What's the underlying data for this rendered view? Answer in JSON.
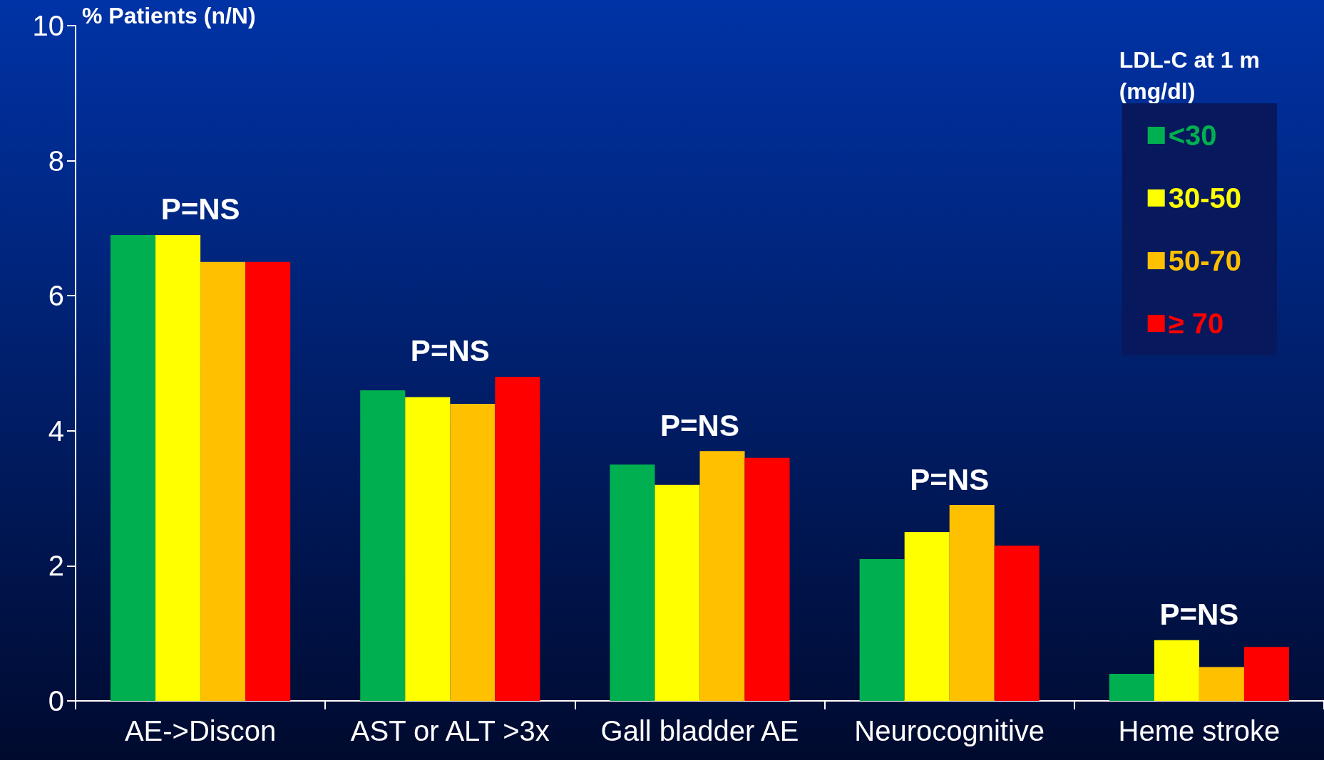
{
  "chart_data": {
    "type": "bar",
    "ylabel": "% Patients (n/N)",
    "legend_title": "LDL-C at 1 m\n(mg/dl)",
    "categories": [
      "AE->Discon",
      "AST or ALT >3x",
      "Gall bladder AE",
      "Neurocognitive",
      "Heme stroke"
    ],
    "series": [
      {
        "name": "<30",
        "color": "#00b050",
        "values": [
          6.9,
          4.6,
          3.5,
          2.1,
          0.4
        ]
      },
      {
        "name": "30-50",
        "color": "#ffff00",
        "values": [
          6.9,
          4.5,
          3.2,
          2.5,
          0.9
        ]
      },
      {
        "name": "50-70",
        "color": "#ffc000",
        "values": [
          6.5,
          4.4,
          3.7,
          2.9,
          0.5
        ]
      },
      {
        "name": "≥ 70",
        "color": "#ff0000",
        "values": [
          6.5,
          4.8,
          3.6,
          2.3,
          0.8
        ]
      }
    ],
    "ylim": [
      0,
      10
    ],
    "yticks": [
      0,
      2,
      4,
      6,
      8,
      10
    ],
    "grid": false,
    "legend": "top right",
    "annotations": [
      "P=NS",
      "P=NS",
      "P=NS",
      "P=NS",
      "P=NS"
    ]
  }
}
